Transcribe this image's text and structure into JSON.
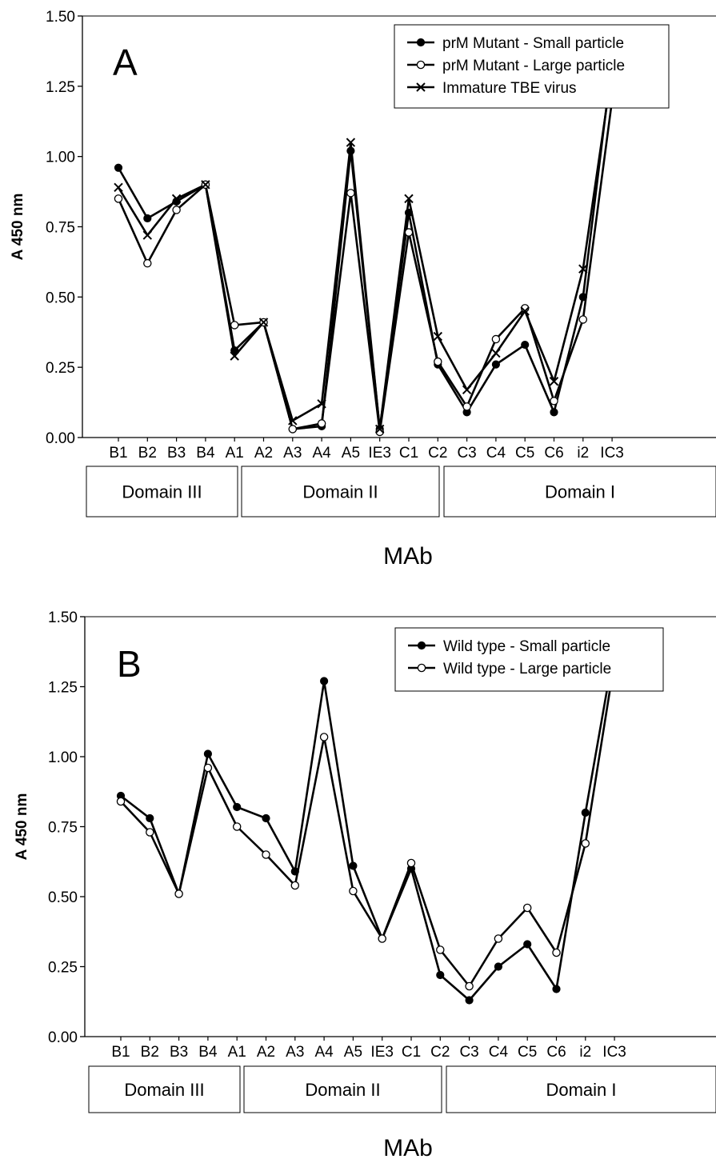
{
  "chart_data": [
    {
      "panel_letter": "A",
      "type": "line",
      "xlabel": "MAb",
      "ylabel": "A 450 nm",
      "ylim": [
        0,
        1.5
      ],
      "yticks": [
        "0.00",
        "0.25",
        "0.50",
        "0.75",
        "1.00",
        "1.25",
        "1.50"
      ],
      "categories": [
        "B1",
        "B2",
        "B3",
        "B4",
        "A1",
        "A2",
        "A3",
        "A4",
        "A5",
        "IE3",
        "C1",
        "C2",
        "C3",
        "C4",
        "C5",
        "C6",
        "i2",
        "IC3"
      ],
      "domains": [
        {
          "label": "Domain III",
          "from": 0,
          "to": 3
        },
        {
          "label": "Domain II",
          "from": 4,
          "to": 9
        },
        {
          "label": "Domain I",
          "from": 10,
          "to": 17
        }
      ],
      "legend_position": "top-right",
      "series": [
        {
          "name": "prM Mutant - Small particle",
          "marker": "filled-circle",
          "values": [
            0.96,
            0.78,
            0.84,
            0.9,
            0.31,
            0.41,
            0.03,
            0.04,
            1.02,
            0.03,
            0.8,
            0.26,
            0.09,
            0.26,
            0.33,
            0.09,
            0.5,
            1.34
          ]
        },
        {
          "name": "prM Mutant - Large particle",
          "marker": "open-circle",
          "values": [
            0.85,
            0.62,
            0.81,
            0.9,
            0.4,
            0.41,
            0.03,
            0.05,
            0.87,
            0.02,
            0.73,
            0.27,
            0.11,
            0.35,
            0.46,
            0.13,
            0.42,
            1.2
          ]
        },
        {
          "name": "Immature TBE virus",
          "marker": "cross",
          "values": [
            0.89,
            0.72,
            0.85,
            0.9,
            0.29,
            0.41,
            0.06,
            0.12,
            1.05,
            0.03,
            0.85,
            0.36,
            0.17,
            0.3,
            0.45,
            0.2,
            0.6,
            1.31
          ]
        }
      ]
    },
    {
      "panel_letter": "B",
      "type": "line",
      "xlabel": "MAb",
      "ylabel": "A 450 nm",
      "ylim": [
        0,
        1.5
      ],
      "yticks": [
        "0.00",
        "0.25",
        "0.50",
        "0.75",
        "1.00",
        "1.25",
        "1.50"
      ],
      "categories": [
        "B1",
        "B2",
        "B3",
        "B4",
        "A1",
        "A2",
        "A3",
        "A4",
        "A5",
        "IE3",
        "C1",
        "C2",
        "C3",
        "C4",
        "C5",
        "C6",
        "i2",
        "IC3"
      ],
      "domains": [
        {
          "label": "Domain III",
          "from": 0,
          "to": 3
        },
        {
          "label": "Domain II",
          "from": 4,
          "to": 9
        },
        {
          "label": "Domain I",
          "from": 10,
          "to": 17
        }
      ],
      "legend_position": "top-right",
      "series": [
        {
          "name": "Wild type - Small particle",
          "marker": "filled-circle",
          "values": [
            0.86,
            0.78,
            0.51,
            1.01,
            0.82,
            0.78,
            0.59,
            1.27,
            0.61,
            0.35,
            0.6,
            0.22,
            0.13,
            0.25,
            0.33,
            0.17,
            0.8,
            1.39
          ]
        },
        {
          "name": "Wild type - Large particle",
          "marker": "open-circle",
          "values": [
            0.84,
            0.73,
            0.51,
            0.96,
            0.75,
            0.65,
            0.54,
            1.07,
            0.52,
            0.35,
            0.62,
            0.31,
            0.18,
            0.35,
            0.46,
            0.3,
            0.69,
            1.34
          ]
        }
      ]
    }
  ]
}
